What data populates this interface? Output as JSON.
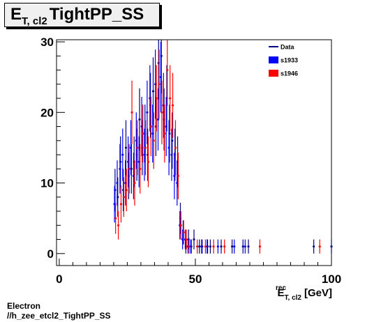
{
  "title": {
    "main": "E",
    "sub": "T, cl2",
    "rest": "TightPP_SS"
  },
  "footer": {
    "line1": "Electron",
    "line2": "//h_zee_etcl2_TightPP_SS"
  },
  "chart_data": {
    "type": "scatter",
    "xlabel_main": "E",
    "xlabel_sup": "rec",
    "xlabel_sub": "T, cl2",
    "xlabel_unit": "[GeV]",
    "ylabel": "",
    "xlim": [
      -1,
      100
    ],
    "ylim": [
      -1.7,
      30.3
    ],
    "xticks": [
      0,
      50,
      100
    ],
    "yticks": [
      0,
      10,
      20,
      30
    ],
    "legend_position": "top-right",
    "colors": {
      "Data": "#000080",
      "s1933": "#0000ff",
      "s1946": "#ff0000"
    },
    "series": [
      {
        "name": "Data",
        "style": "errorbar",
        "x": [
          20.5,
          21.5,
          22.5,
          23.5,
          24.5,
          25.5,
          26.5,
          27.5,
          28.5,
          29.5,
          30.5,
          31.5,
          32.5,
          33.5,
          34.5,
          35.5,
          36.5,
          37.5,
          38.5,
          39.5,
          40.5,
          41.5,
          42.5,
          43.5,
          44.5,
          45.5,
          46.5,
          47.5,
          48.5,
          49.5,
          51.5,
          52.5,
          54.5,
          55.5,
          59.5,
          63.5,
          67.5,
          69.5,
          93.5,
          100.0
        ],
        "y": [
          9,
          8,
          13,
          9,
          15,
          11,
          12,
          13,
          14,
          19,
          15,
          17,
          14,
          21,
          23,
          18,
          27,
          28,
          19,
          22,
          17,
          16,
          14,
          13,
          5,
          3,
          1,
          2,
          1,
          2,
          1,
          1,
          1,
          1,
          1,
          1,
          1,
          1,
          1,
          1
        ],
        "yerr": [
          3,
          2.8,
          3.6,
          3,
          3.9,
          3.3,
          3.5,
          3.6,
          3.7,
          4.4,
          3.9,
          4.1,
          3.7,
          4.6,
          4.8,
          4.2,
          5.2,
          5.3,
          4.4,
          4.7,
          4.1,
          4,
          3.7,
          3.6,
          2.2,
          1.7,
          1,
          1.4,
          1,
          1.4,
          1,
          1,
          1,
          1,
          1,
          1,
          1,
          1,
          1,
          1
        ]
      },
      {
        "name": "s1933",
        "style": "errorbar",
        "x": [
          20.3,
          21.3,
          22.3,
          23.3,
          24.3,
          25.3,
          26.3,
          27.3,
          28.3,
          29.3,
          30.3,
          31.3,
          32.3,
          33.3,
          34.3,
          35.3,
          36.3,
          37.3,
          38.3,
          39.3,
          40.3,
          41.3,
          42.3,
          43.3,
          44.3,
          45.3,
          46.3,
          47.3,
          48.3,
          52.3,
          54.3,
          58.3,
          64.3,
          68.3
        ],
        "y": [
          7,
          10,
          12,
          14,
          10,
          13,
          15,
          11,
          16,
          13,
          18,
          14,
          20,
          22,
          17,
          24,
          19,
          25,
          21,
          18,
          15,
          14,
          11,
          10,
          4,
          2,
          2,
          1,
          1,
          1,
          1,
          1,
          1,
          1
        ],
        "yerr": [
          2.6,
          3.2,
          3.5,
          3.7,
          3.2,
          3.6,
          3.9,
          3.3,
          4,
          3.6,
          4.2,
          3.7,
          4.5,
          4.7,
          4.1,
          4.9,
          4.4,
          5,
          4.6,
          4.2,
          3.9,
          3.7,
          3.3,
          3.2,
          2,
          1.4,
          1.4,
          1,
          1,
          1,
          1,
          1,
          1,
          1
        ]
      },
      {
        "name": "s1946",
        "style": "errorbar",
        "x": [
          20.7,
          21.7,
          22.7,
          23.7,
          24.7,
          25.7,
          26.7,
          27.7,
          28.7,
          29.7,
          30.7,
          31.7,
          32.7,
          33.7,
          34.7,
          35.7,
          36.7,
          37.7,
          38.7,
          39.7,
          40.7,
          41.7,
          42.7,
          43.7,
          44.7,
          45.7,
          46.7,
          47.7,
          50.7,
          53.7,
          56.7,
          60.7,
          73.7,
          95.7
        ],
        "y": [
          5,
          4,
          7,
          8,
          9,
          12,
          20,
          10,
          15,
          12,
          17,
          15,
          13,
          18,
          16,
          22,
          24,
          20,
          17,
          26,
          22,
          21,
          15,
          11,
          4,
          3,
          2,
          1,
          1,
          1,
          1,
          1,
          1,
          1
        ],
        "yerr": [
          2.2,
          2,
          2.6,
          2.8,
          3,
          3.5,
          4.5,
          3.2,
          3.9,
          3.5,
          4.1,
          3.9,
          3.6,
          4.2,
          4,
          4.7,
          4.9,
          4.5,
          4.1,
          5.1,
          4.7,
          4.6,
          3.9,
          3.3,
          2,
          1.7,
          1.4,
          1,
          1,
          1,
          1,
          1,
          1,
          1
        ]
      }
    ]
  }
}
